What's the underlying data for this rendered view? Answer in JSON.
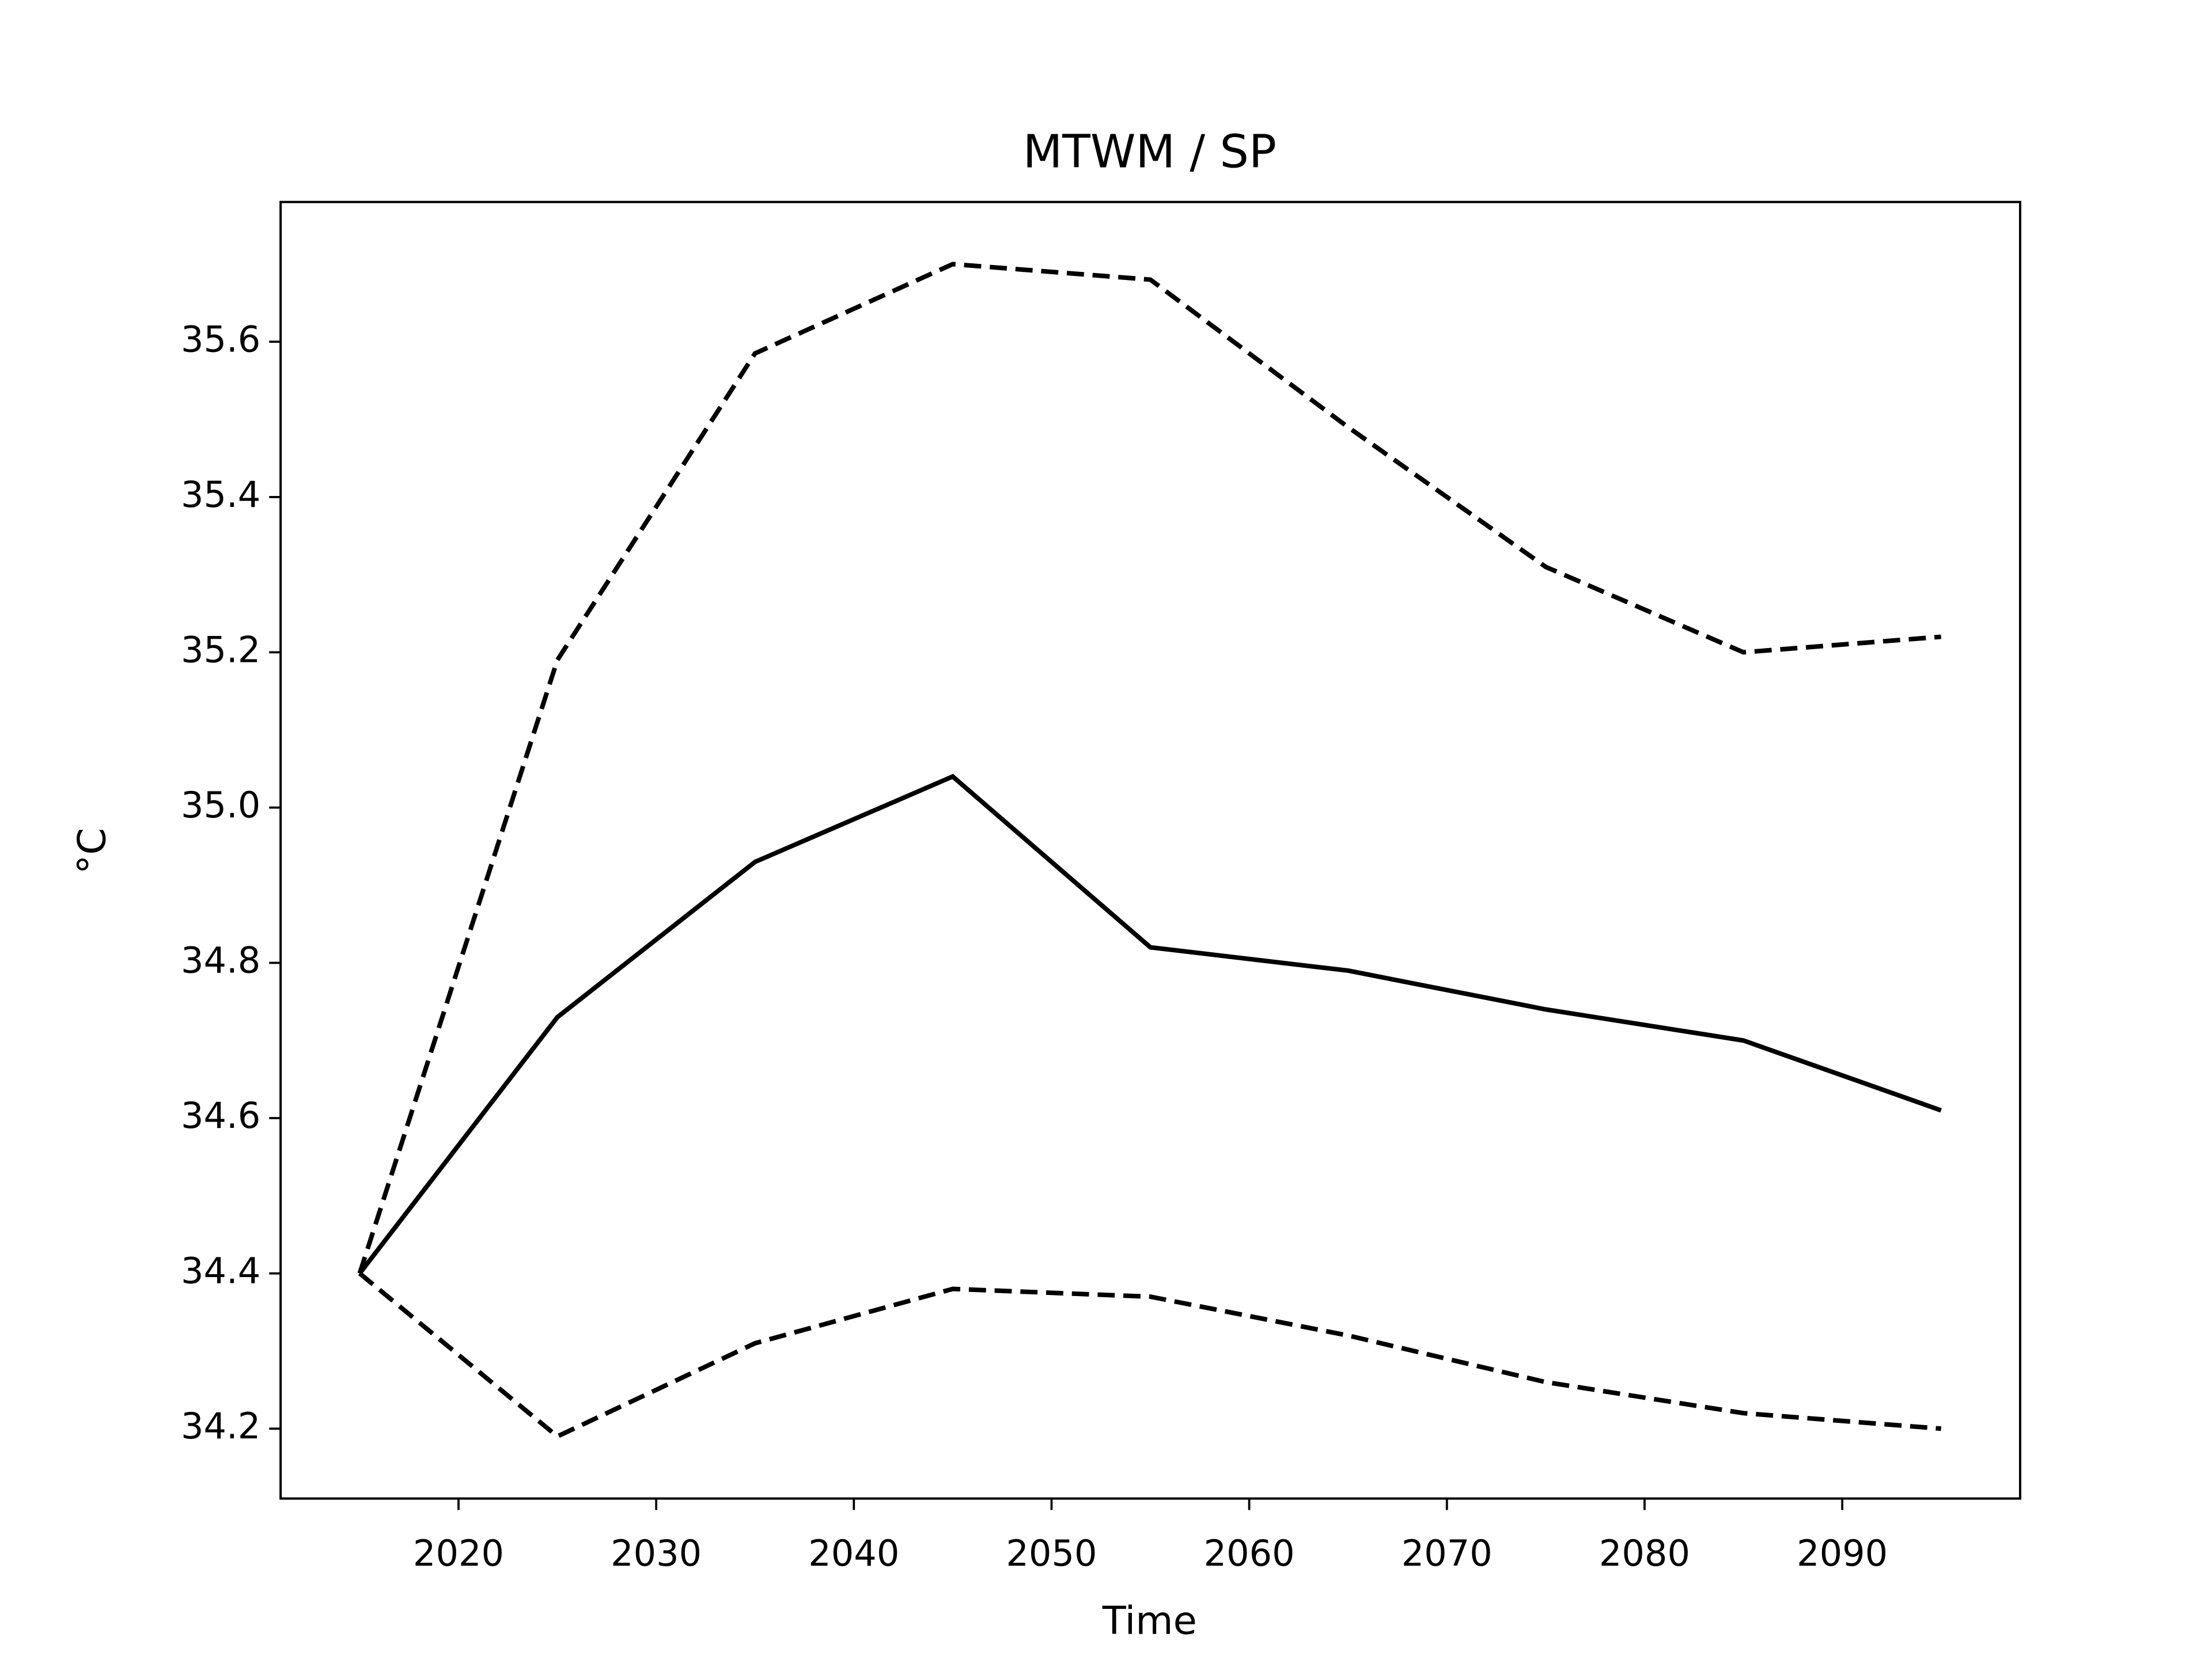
{
  "chart_data": {
    "type": "line",
    "title": "MTWM / SP",
    "xlabel": "Time",
    "ylabel": "°C",
    "x": [
      2015,
      2025,
      2035,
      2045,
      2055,
      2065,
      2075,
      2085,
      2095
    ],
    "series": [
      {
        "color": "#000000",
        "linestyle": "solid",
        "values": [
          34.4,
          34.73,
          34.93,
          35.04,
          34.82,
          34.79,
          34.74,
          34.7,
          34.61
        ]
      },
      {
        "color": "#000000",
        "linestyle": "dashed",
        "values": [
          34.4,
          35.19,
          35.585,
          35.7,
          35.68,
          35.49,
          35.31,
          35.2,
          35.22
        ]
      },
      {
        "color": "#000000",
        "linestyle": "dashed",
        "values": [
          34.4,
          34.19,
          34.31,
          34.38,
          34.37,
          34.32,
          34.26,
          34.22,
          34.2
        ]
      }
    ],
    "xlim": [
      2011,
      2099
    ],
    "xticks": [
      2020,
      2030,
      2040,
      2050,
      2060,
      2070,
      2080,
      2090
    ],
    "ylim": [
      34.11,
      35.78
    ],
    "yticks": [
      {
        "value": 34.2,
        "label": "34.2"
      },
      {
        "value": 34.4,
        "label": "34.4"
      },
      {
        "value": 34.6,
        "label": "34.6"
      },
      {
        "value": 34.8,
        "label": "34.8"
      },
      {
        "value": 35.0,
        "label": "35.0"
      },
      {
        "value": 35.2,
        "label": "35.2"
      },
      {
        "value": 35.4,
        "label": "35.4"
      },
      {
        "value": 35.6,
        "label": "35.6"
      }
    ],
    "grid": false
  }
}
